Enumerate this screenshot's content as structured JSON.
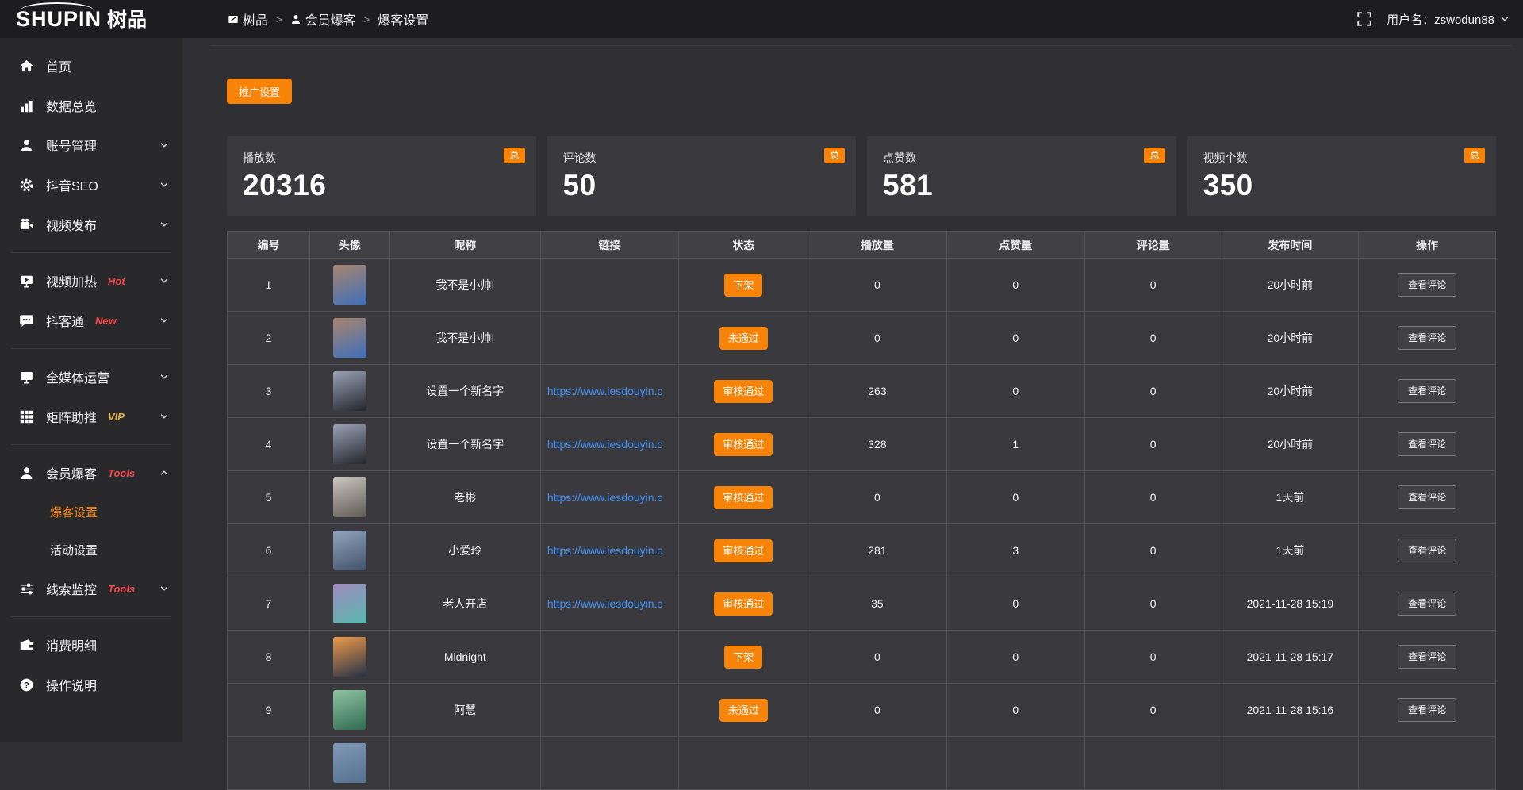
{
  "colors": {
    "accent": "#f78408",
    "link": "#3f8ff7",
    "tag_red": "#f4494d",
    "tag_gold": "#e8b33c"
  },
  "logo": {
    "en": "SHUPIN",
    "cn": "树品"
  },
  "topbar": {
    "breadcrumb": [
      {
        "label": "树品",
        "icon": "app"
      },
      {
        "label": "会员爆客",
        "icon": "user"
      },
      {
        "label": "爆客设置",
        "icon": ""
      }
    ],
    "separator": ">",
    "username": "用户名：zswodun88"
  },
  "sidebar": {
    "items": [
      {
        "label": "首页",
        "icon": "home"
      },
      {
        "label": "数据总览",
        "icon": "chart"
      },
      {
        "label": "账号管理",
        "icon": "user",
        "chevron": "down"
      },
      {
        "label": "抖音SEO",
        "icon": "gear",
        "chevron": "down"
      },
      {
        "label": "视频发布",
        "icon": "camera",
        "chevron": "down"
      },
      {
        "divider": true
      },
      {
        "label": "视频加热",
        "icon": "heat",
        "tag": "Hot",
        "tag_color": "#f4494d",
        "chevron": "down"
      },
      {
        "label": "抖客通",
        "icon": "chat",
        "tag": "New",
        "tag_color": "#f4494d",
        "chevron": "down"
      },
      {
        "divider": true
      },
      {
        "label": "全媒体运营",
        "icon": "monitor",
        "chevron": "down"
      },
      {
        "label": "矩阵助推",
        "icon": "grid",
        "tag": "VIP",
        "tag_color": "#e8b33c",
        "chevron": "down"
      },
      {
        "divider": true
      },
      {
        "label": "会员爆客",
        "icon": "user",
        "tag": "Tools",
        "tag_color": "#f4494d",
        "chevron": "up",
        "children": [
          {
            "label": "爆客设置",
            "active": true
          },
          {
            "label": "活动设置",
            "active": false
          }
        ]
      },
      {
        "label": "线索监控",
        "icon": "sliders",
        "tag": "Tools",
        "tag_color": "#f4494d",
        "chevron": "down"
      },
      {
        "divider": true
      },
      {
        "label": "消费明细",
        "icon": "wallet"
      },
      {
        "label": "操作说明",
        "icon": "question"
      }
    ]
  },
  "toolbar": {
    "promo_label": "推广设置"
  },
  "stats": {
    "badge": "总",
    "cards": [
      {
        "label": "播放数",
        "value": "20316"
      },
      {
        "label": "评论数",
        "value": "50"
      },
      {
        "label": "点赞数",
        "value": "581"
      },
      {
        "label": "视频个数",
        "value": "350"
      }
    ]
  },
  "table": {
    "columns": [
      "编号",
      "头像",
      "昵称",
      "链接",
      "状态",
      "播放量",
      "点赞量",
      "评论量",
      "发布时间",
      "操作"
    ],
    "action_label": "查看评论",
    "rows": [
      {
        "id": "1",
        "nickname": "我不是小帅!",
        "link": "",
        "status": "下架",
        "plays": "0",
        "likes": "0",
        "comments": "0",
        "time": "20小时前",
        "avatar_colors": [
          "#a8856d",
          "#3f6fba"
        ]
      },
      {
        "id": "2",
        "nickname": "我不是小帅!",
        "link": "",
        "status": "未通过",
        "plays": "0",
        "likes": "0",
        "comments": "0",
        "time": "20小时前",
        "avatar_colors": [
          "#a8856d",
          "#3f6fba"
        ]
      },
      {
        "id": "3",
        "nickname": "设置一个新名字",
        "link": "https://www.iesdouyin.c",
        "status": "审核通过",
        "plays": "263",
        "likes": "0",
        "comments": "0",
        "time": "20小时前",
        "avatar_colors": [
          "#99a2b5",
          "#23262c"
        ]
      },
      {
        "id": "4",
        "nickname": "设置一个新名字",
        "link": "https://www.iesdouyin.c",
        "status": "审核通过",
        "plays": "328",
        "likes": "1",
        "comments": "0",
        "time": "20小时前",
        "avatar_colors": [
          "#99a2b5",
          "#23262c"
        ]
      },
      {
        "id": "5",
        "nickname": "老彬",
        "link": "https://www.iesdouyin.c",
        "status": "审核通过",
        "plays": "0",
        "likes": "0",
        "comments": "0",
        "time": "1天前",
        "avatar_colors": [
          "#c9c4bc",
          "#5f5a55"
        ]
      },
      {
        "id": "6",
        "nickname": "小爱玲",
        "link": "https://www.iesdouyin.c",
        "status": "审核通过",
        "plays": "281",
        "likes": "3",
        "comments": "0",
        "time": "1天前",
        "avatar_colors": [
          "#8fa5bd",
          "#44526b"
        ]
      },
      {
        "id": "7",
        "nickname": "老人开店",
        "link": "https://www.iesdouyin.c",
        "status": "审核通过",
        "plays": "35",
        "likes": "0",
        "comments": "0",
        "time": "2021-11-28 15:19",
        "avatar_colors": [
          "#a18cc0",
          "#57b8ad"
        ]
      },
      {
        "id": "8",
        "nickname": "Midnight",
        "link": "",
        "status": "下架",
        "plays": "0",
        "likes": "0",
        "comments": "0",
        "time": "2021-11-28 15:17",
        "avatar_colors": [
          "#ef9a4a",
          "#253248"
        ]
      },
      {
        "id": "9",
        "nickname": "阿慧",
        "link": "",
        "status": "未通过",
        "plays": "0",
        "likes": "0",
        "comments": "0",
        "time": "2021-11-28 15:16",
        "avatar_colors": [
          "#8fc4a0",
          "#2f6b52"
        ]
      },
      {
        "id": "",
        "nickname": "",
        "link": "",
        "status": "",
        "plays": "",
        "likes": "",
        "comments": "",
        "time": "",
        "avatar_colors": [
          "#7f98b5",
          "#55718f"
        ]
      }
    ]
  }
}
